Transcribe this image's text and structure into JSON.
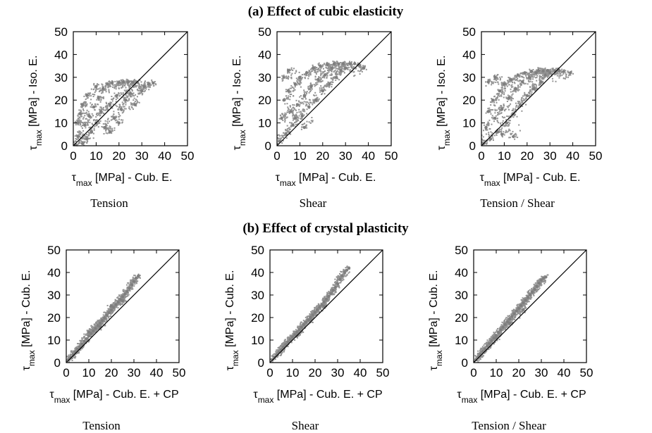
{
  "chart_data": [
    {
      "type": "scatter",
      "title": "(a) Effect of cubic elasticity",
      "subtitle": "Tension",
      "xlabel": "τmax [MPa] - Cub. E.",
      "ylabel": "τmax [MPa] - Iso. E.",
      "xlim": [
        0,
        50
      ],
      "ylim": [
        0,
        50
      ],
      "xticks": [
        0,
        10,
        20,
        30,
        40,
        50
      ],
      "yticks": [
        0,
        10,
        20,
        30,
        40,
        50
      ],
      "reference_line": "y = x",
      "point_color": "#7f7f7f",
      "series": [
        {
          "values": [
            [
              1,
              0.5
            ],
            [
              2,
              4
            ],
            [
              4,
              1
            ],
            [
              5,
              9
            ],
            [
              6,
              3
            ],
            [
              7,
              13
            ],
            [
              8,
              6
            ],
            [
              9,
              17
            ],
            [
              10,
              10
            ],
            [
              11,
              21
            ],
            [
              12,
              15
            ],
            [
              13,
              25
            ],
            [
              14,
              8
            ],
            [
              15,
              27
            ],
            [
              16,
              18
            ],
            [
              17,
              27.5
            ],
            [
              18,
              12
            ],
            [
              19,
              22
            ],
            [
              20,
              27.8
            ],
            [
              21,
              16
            ],
            [
              22,
              27.9
            ],
            [
              23,
              20
            ],
            [
              24,
              27.9
            ],
            [
              25,
              23
            ],
            [
              26,
              27.8
            ],
            [
              27,
              18
            ],
            [
              28,
              27.9
            ],
            [
              30,
              24
            ],
            [
              31,
              26
            ],
            [
              33,
              27
            ],
            [
              35,
              27.5
            ],
            [
              4,
              18
            ],
            [
              2,
              10
            ],
            [
              6,
              22
            ],
            [
              3,
              14
            ],
            [
              10,
              26
            ],
            [
              16,
              6
            ],
            [
              20,
              10
            ]
          ]
        }
      ]
    },
    {
      "type": "scatter",
      "subtitle": "Shear",
      "xlabel": "τmax [MPa] - Cub. E.",
      "ylabel": "τmax [MPa] - Iso. E.",
      "xlim": [
        0,
        50
      ],
      "ylim": [
        0,
        50
      ],
      "xticks": [
        0,
        10,
        20,
        30,
        40,
        50
      ],
      "yticks": [
        0,
        10,
        20,
        30,
        40,
        50
      ],
      "reference_line": "y = x",
      "point_color": "#7f7f7f",
      "series": [
        {
          "values": [
            [
              1,
              2
            ],
            [
              2,
              12
            ],
            [
              3,
              20
            ],
            [
              4,
              5
            ],
            [
              5,
              24
            ],
            [
              6,
              15
            ],
            [
              7,
              9
            ],
            [
              8,
              27
            ],
            [
              9,
              18
            ],
            [
              10,
              30
            ],
            [
              11,
              13
            ],
            [
              12,
              22
            ],
            [
              13,
              32
            ],
            [
              14,
              17
            ],
            [
              15,
              26
            ],
            [
              16,
              34
            ],
            [
              17,
              20
            ],
            [
              18,
              29
            ],
            [
              19,
              35
            ],
            [
              20,
              24
            ],
            [
              21,
              31
            ],
            [
              22,
              35.5
            ],
            [
              23,
              27
            ],
            [
              24,
              34
            ],
            [
              25,
              36
            ],
            [
              26,
              30
            ],
            [
              27,
              35.8
            ],
            [
              28,
              33
            ],
            [
              29,
              36
            ],
            [
              30,
              34
            ],
            [
              32,
              35.9
            ],
            [
              34,
              36
            ],
            [
              36,
              35.5
            ],
            [
              38,
              34
            ],
            [
              3,
              30
            ],
            [
              5,
              33
            ],
            [
              8,
              12
            ],
            [
              12,
              8
            ]
          ]
        }
      ]
    },
    {
      "type": "scatter",
      "subtitle": "Tension / Shear",
      "xlabel": "τmax [MPa] - Cub. E.",
      "ylabel": "τmax [MPa] - Iso. E.",
      "xlim": [
        0,
        50
      ],
      "ylim": [
        0,
        50
      ],
      "xticks": [
        0,
        10,
        20,
        30,
        40,
        50
      ],
      "yticks": [
        0,
        10,
        20,
        30,
        40,
        50
      ],
      "reference_line": "y = x",
      "point_color": "#7f7f7f",
      "series": [
        {
          "values": [
            [
              1,
              1
            ],
            [
              2,
              8
            ],
            [
              3,
              15
            ],
            [
              4,
              3
            ],
            [
              5,
              20
            ],
            [
              6,
              12
            ],
            [
              7,
              6
            ],
            [
              8,
              24
            ],
            [
              9,
              16
            ],
            [
              10,
              27
            ],
            [
              11,
              10
            ],
            [
              12,
              21
            ],
            [
              13,
              29
            ],
            [
              14,
              14
            ],
            [
              15,
              25
            ],
            [
              16,
              31
            ],
            [
              17,
              18
            ],
            [
              18,
              28
            ],
            [
              19,
              32
            ],
            [
              20,
              22
            ],
            [
              21,
              30
            ],
            [
              22,
              32.5
            ],
            [
              23,
              25
            ],
            [
              24,
              32
            ],
            [
              25,
              33
            ],
            [
              26,
              28
            ],
            [
              27,
              32.8
            ],
            [
              28,
              31
            ],
            [
              29,
              33
            ],
            [
              30,
              32
            ],
            [
              32,
              32.9
            ],
            [
              34,
              33
            ],
            [
              36,
              32.5
            ],
            [
              39,
              32
            ],
            [
              3,
              28
            ],
            [
              6,
              30
            ],
            [
              9,
              5
            ],
            [
              14,
              4
            ]
          ]
        }
      ]
    },
    {
      "type": "scatter",
      "title": "(b) Effect of crystal plasticity",
      "subtitle": "Tension",
      "xlabel": "τmax [MPa] - Cub. E. + CP",
      "ylabel": "τmax [MPa] - Cub. E.",
      "xlim": [
        0,
        50
      ],
      "ylim": [
        0,
        50
      ],
      "xticks": [
        0,
        10,
        20,
        30,
        40,
        50
      ],
      "yticks": [
        0,
        10,
        20,
        30,
        40,
        50
      ],
      "reference_line": "y = x",
      "point_color": "#7f7f7f",
      "series": [
        {
          "values": [
            [
              1,
              1.3
            ],
            [
              2,
              2.4
            ],
            [
              3,
              3.6
            ],
            [
              4,
              4.8
            ],
            [
              5,
              6
            ],
            [
              6,
              7.1
            ],
            [
              7,
              8.3
            ],
            [
              8,
              9.5
            ],
            [
              9,
              10.6
            ],
            [
              10,
              11.8
            ],
            [
              11,
              12.9
            ],
            [
              12,
              14.1
            ],
            [
              13,
              15.2
            ],
            [
              14,
              16.4
            ],
            [
              15,
              17.5
            ],
            [
              16,
              18.7
            ],
            [
              17,
              19.8
            ],
            [
              18,
              21
            ],
            [
              19,
              22.2
            ],
            [
              20,
              23.3
            ],
            [
              21,
              24.5
            ],
            [
              22,
              25.7
            ],
            [
              23,
              26.8
            ],
            [
              24,
              28
            ],
            [
              25,
              29.2
            ],
            [
              26,
              30.4
            ],
            [
              27,
              31.6
            ],
            [
              28,
              33
            ],
            [
              29,
              34.5
            ],
            [
              30,
              36
            ],
            [
              31,
              37.5
            ],
            [
              32,
              38.5
            ],
            [
              10,
              13.5
            ],
            [
              15,
              16
            ],
            [
              20,
              25
            ],
            [
              25,
              27.5
            ]
          ]
        }
      ]
    },
    {
      "type": "scatter",
      "subtitle": "Shear",
      "xlabel": "τmax [MPa] - Cub. E. + CP",
      "ylabel": "τmax [MPa] - Cub. E.",
      "xlim": [
        0,
        50
      ],
      "ylim": [
        0,
        50
      ],
      "xticks": [
        0,
        10,
        20,
        30,
        40,
        50
      ],
      "yticks": [
        0,
        10,
        20,
        30,
        40,
        50
      ],
      "reference_line": "y = x",
      "point_color": "#7f7f7f",
      "series": [
        {
          "values": [
            [
              1,
              1.3
            ],
            [
              2,
              2.5
            ],
            [
              3,
              3.6
            ],
            [
              4,
              4.7
            ],
            [
              5,
              5.8
            ],
            [
              6,
              6.9
            ],
            [
              7,
              8
            ],
            [
              8,
              9.1
            ],
            [
              9,
              10.2
            ],
            [
              10,
              11.3
            ],
            [
              11,
              12.4
            ],
            [
              12,
              13.5
            ],
            [
              13,
              14.6
            ],
            [
              14,
              15.7
            ],
            [
              15,
              16.8
            ],
            [
              16,
              17.9
            ],
            [
              17,
              19
            ],
            [
              18,
              20.1
            ],
            [
              19,
              21.2
            ],
            [
              20,
              22.3
            ],
            [
              21,
              23.4
            ],
            [
              22,
              24.6
            ],
            [
              23,
              25.7
            ],
            [
              24,
              26.9
            ],
            [
              25,
              28.1
            ],
            [
              26,
              29.4
            ],
            [
              27,
              30.7
            ],
            [
              28,
              32
            ],
            [
              29,
              33.4
            ],
            [
              30,
              35
            ],
            [
              31,
              37
            ],
            [
              32,
              38.5
            ],
            [
              33,
              40
            ],
            [
              34,
              41
            ],
            [
              35,
              42
            ],
            [
              12,
              12
            ],
            [
              18,
              19
            ],
            [
              24,
              25
            ]
          ]
        }
      ]
    },
    {
      "type": "scatter",
      "subtitle": "Tension / Shear",
      "xlabel": "τmax [MPa] - Cub. E. + CP",
      "ylabel": "τmax [MPa] - Cub. E.",
      "xlim": [
        0,
        50
      ],
      "ylim": [
        0,
        50
      ],
      "xticks": [
        0,
        10,
        20,
        30,
        40,
        50
      ],
      "yticks": [
        0,
        10,
        20,
        30,
        40,
        50
      ],
      "reference_line": "y = x",
      "point_color": "#7f7f7f",
      "series": [
        {
          "values": [
            [
              1,
              1.3
            ],
            [
              2,
              2.5
            ],
            [
              3,
              3.7
            ],
            [
              4,
              4.9
            ],
            [
              5,
              6.1
            ],
            [
              6,
              7.3
            ],
            [
              7,
              8.5
            ],
            [
              8,
              9.7
            ],
            [
              9,
              10.9
            ],
            [
              10,
              12.1
            ],
            [
              11,
              13.3
            ],
            [
              12,
              14.5
            ],
            [
              13,
              15.7
            ],
            [
              14,
              16.9
            ],
            [
              15,
              18.1
            ],
            [
              16,
              19.3
            ],
            [
              17,
              20.5
            ],
            [
              18,
              21.7
            ],
            [
              19,
              22.9
            ],
            [
              20,
              24.1
            ],
            [
              21,
              25.3
            ],
            [
              22,
              26.5
            ],
            [
              23,
              27.7
            ],
            [
              24,
              28.9
            ],
            [
              25,
              30.1
            ],
            [
              26,
              31.3
            ],
            [
              27,
              32.5
            ],
            [
              28,
              33.8
            ],
            [
              29,
              35.2
            ],
            [
              30,
              36.6
            ],
            [
              31,
              37.5
            ],
            [
              32,
              38
            ],
            [
              10,
              11
            ],
            [
              16,
              17.5
            ],
            [
              22,
              23.5
            ]
          ]
        }
      ]
    }
  ]
}
